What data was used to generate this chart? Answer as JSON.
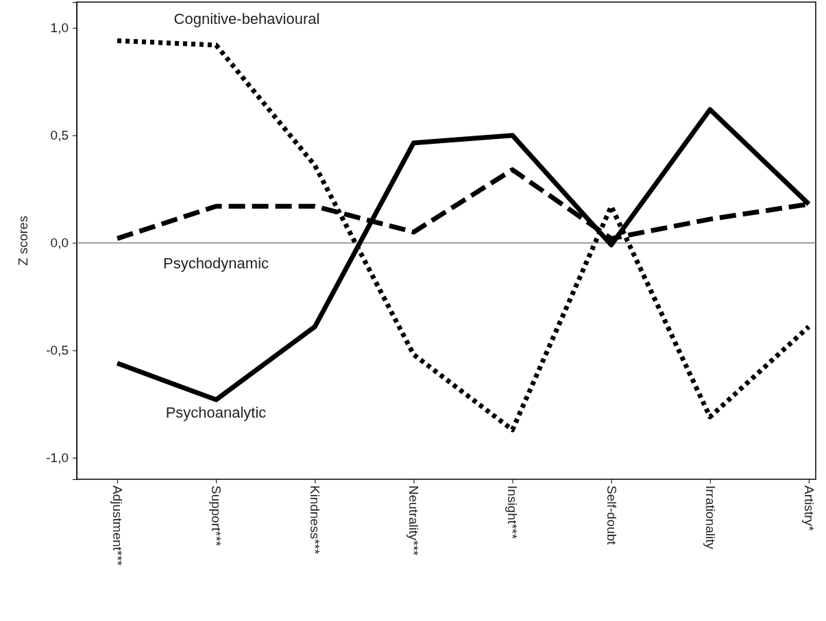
{
  "chart_data": {
    "type": "line",
    "ylabel": "Z scores",
    "categories": [
      "Adjustment***",
      "Support***",
      "Kindness***",
      "Neutrality***",
      "Insight***",
      "Self-doubt",
      "Irrationality",
      "Artistry*"
    ],
    "series": [
      {
        "name": "Cognitive-behavioural",
        "color": "#000000",
        "line_style": "dotted",
        "values": [
          0.94,
          0.92,
          0.36,
          -0.52,
          -0.87,
          0.17,
          -0.81,
          -0.39
        ]
      },
      {
        "name": "Psychodynamic",
        "color": "#000000",
        "line_style": "dashed",
        "values": [
          0.02,
          0.17,
          0.17,
          0.05,
          0.34,
          0.02,
          0.11,
          0.18
        ]
      },
      {
        "name": "Psychoanalytic",
        "color": "#000000",
        "line_style": "solid",
        "values": [
          -0.56,
          -0.73,
          -0.39,
          0.465,
          0.5,
          -0.01,
          0.62,
          0.18
        ]
      }
    ],
    "ylim": [
      -1.1,
      1.12
    ],
    "yticks": [
      {
        "value": -1,
        "label": "-1,0"
      },
      {
        "value": -0.5,
        "label": "-0,5"
      },
      {
        "value": 0,
        "label": "0,0"
      },
      {
        "value": 0.5,
        "label": "0,5"
      },
      {
        "value": 1,
        "label": "1,0"
      }
    ],
    "ref_lines": [
      {
        "axis": "y",
        "value": 0,
        "color": "#808080"
      }
    ],
    "grid": false,
    "marker": "none"
  }
}
